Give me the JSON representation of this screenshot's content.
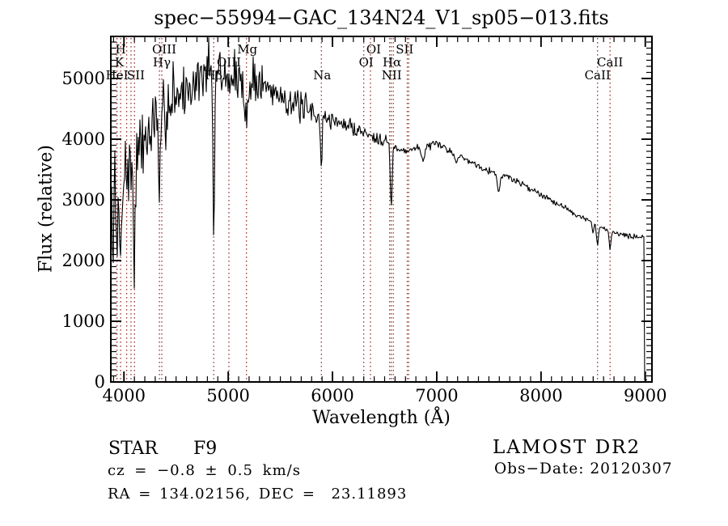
{
  "title": "spec−55994−GAC_134N24_V1_sp05−013.fits",
  "axes": {
    "x_label": "Wavelength (Å)",
    "y_label": "Flux (relative)",
    "x_ticks": [
      4000,
      5000,
      6000,
      7000,
      8000,
      9000
    ],
    "y_ticks": [
      0,
      1000,
      2000,
      3000,
      4000,
      5000
    ],
    "x_minor_step": 100,
    "y_minor_step": 100,
    "xlim": [
      3874,
      9064
    ],
    "ylim": [
      0,
      5693
    ]
  },
  "chart_data": {
    "type": "line",
    "series_name": "LAMOST stellar spectrum",
    "title": "spec−55994−GAC_134N24_V1_sp05−013.fits",
    "xlabel": "Wavelength (Å)",
    "ylabel": "Flux (relative)",
    "xlim": [
      3874,
      9064
    ],
    "ylim": [
      0,
      5693
    ],
    "grid": false,
    "envelope_points": [
      [
        3874,
        1500
      ],
      [
        3880,
        1800
      ],
      [
        3895,
        2800
      ],
      [
        3910,
        3100
      ],
      [
        3940,
        3250
      ],
      [
        3970,
        3350
      ],
      [
        4000,
        3500
      ],
      [
        4060,
        3450
      ],
      [
        4120,
        3600
      ],
      [
        4180,
        3950
      ],
      [
        4240,
        4100
      ],
      [
        4300,
        4300
      ],
      [
        4360,
        4400
      ],
      [
        4420,
        4550
      ],
      [
        4480,
        4680
      ],
      [
        4540,
        4770
      ],
      [
        4600,
        4780
      ],
      [
        4660,
        4900
      ],
      [
        4720,
        5020
      ],
      [
        4780,
        5030
      ],
      [
        4840,
        5060
      ],
      [
        4900,
        5100
      ],
      [
        4960,
        5030
      ],
      [
        5020,
        5000
      ],
      [
        5080,
        4940
      ],
      [
        5140,
        4900
      ],
      [
        5200,
        4880
      ],
      [
        5260,
        4950
      ],
      [
        5320,
        4900
      ],
      [
        5380,
        4840
      ],
      [
        5450,
        4790
      ],
      [
        5550,
        4680
      ],
      [
        5650,
        4550
      ],
      [
        5750,
        4480
      ],
      [
        5850,
        4420
      ],
      [
        5950,
        4350
      ],
      [
        6050,
        4280
      ],
      [
        6150,
        4220
      ],
      [
        6250,
        4150
      ],
      [
        6350,
        4080
      ],
      [
        6450,
        4020
      ],
      [
        6550,
        3960
      ],
      [
        6620,
        3820
      ],
      [
        6700,
        3820
      ],
      [
        6800,
        3850
      ],
      [
        6900,
        3880
      ],
      [
        7000,
        3910
      ],
      [
        7080,
        3860
      ],
      [
        7180,
        3760
      ],
      [
        7280,
        3670
      ],
      [
        7380,
        3580
      ],
      [
        7480,
        3500
      ],
      [
        7580,
        3430
      ],
      [
        7680,
        3380
      ],
      [
        7780,
        3300
      ],
      [
        7880,
        3200
      ],
      [
        7980,
        3110
      ],
      [
        8080,
        3020
      ],
      [
        8180,
        2920
      ],
      [
        8280,
        2820
      ],
      [
        8380,
        2720
      ],
      [
        8480,
        2640
      ],
      [
        8580,
        2540
      ],
      [
        8680,
        2480
      ],
      [
        8780,
        2430
      ],
      [
        8880,
        2395
      ],
      [
        8990,
        2380
      ]
    ],
    "noise_segments": [
      [
        3874,
        1600
      ],
      [
        3890,
        1000
      ],
      [
        3925,
        800
      ],
      [
        3975,
        600
      ],
      [
        4125,
        470
      ],
      [
        4425,
        370
      ],
      [
        4705,
        290
      ],
      [
        5405,
        210
      ],
      [
        5755,
        150
      ],
      [
        5985,
        110
      ],
      [
        6295,
        95
      ],
      [
        6555,
        65
      ],
      [
        6805,
        50
      ],
      [
        7105,
        46
      ],
      [
        7605,
        42
      ],
      [
        8305,
        36
      ],
      [
        8990,
        5
      ]
    ],
    "absorption_lines": [
      {
        "lambda": 3933,
        "depth": 1500,
        "sigma": 8
      },
      {
        "lambda": 3968,
        "depth": 1500,
        "sigma": 8
      },
      {
        "lambda": 4101,
        "depth": 1300,
        "sigma": 9
      },
      {
        "lambda": 4340,
        "depth": 1500,
        "sigma": 9
      },
      {
        "lambda": 4861,
        "depth": 2600,
        "sigma": 8
      },
      {
        "lambda": 5175,
        "depth": 400,
        "sigma": 20
      },
      {
        "lambda": 5893,
        "depth": 900,
        "sigma": 8
      },
      {
        "lambda": 6563,
        "depth": 1050,
        "sigma": 9
      },
      {
        "lambda": 6870,
        "depth": 230,
        "sigma": 14
      },
      {
        "lambda": 7186,
        "depth": 130,
        "sigma": 14
      },
      {
        "lambda": 7594,
        "depth": 300,
        "sigma": 12
      },
      {
        "lambda": 8498,
        "depth": 170,
        "sigma": 8
      },
      {
        "lambda": 8542,
        "depth": 340,
        "sigma": 9
      },
      {
        "lambda": 8662,
        "depth": 280,
        "sigma": 9
      }
    ],
    "forced_peaks": [
      [
        4810,
        5670
      ],
      [
        4920,
        5430
      ],
      [
        5060,
        5480
      ],
      [
        5240,
        5360
      ],
      [
        4475,
        5280
      ]
    ],
    "spectrum_end": 8990,
    "zero_tail_end": 9020,
    "zero_tail_flux": 35,
    "line_markers": [
      {
        "label": "H",
        "lambda": 3968,
        "row": 1,
        "dx": 0
      },
      {
        "label": "K",
        "lambda": 3933,
        "row": 2,
        "dx": 3
      },
      {
        "label": "HeI",
        "lambda": 4026,
        "row": 3,
        "dx": -12
      },
      {
        "label": "SII",
        "lambda": 4068,
        "row": 3,
        "dx": 6
      },
      {
        "label": "OIII",
        "lambda": 4363,
        "row": 1,
        "dx": 3
      },
      {
        "label": "Hγ",
        "lambda": 4340,
        "row": 2,
        "dx": 3
      },
      {
        "label": "Mg",
        "lambda": 5175,
        "row": 1,
        "dx": 1
      },
      {
        "label": "OIII",
        "lambda": 5007,
        "row": 2,
        "dx": 0
      },
      {
        "label": "Hβ",
        "lambda": 4861,
        "row": 3,
        "dx": 0
      },
      {
        "label": "Na",
        "lambda": 5893,
        "row": 3,
        "dx": 1
      },
      {
        "label": "OI",
        "lambda": 6364,
        "row": 1,
        "dx": 4
      },
      {
        "label": "OI",
        "lambda": 6300,
        "row": 2,
        "dx": 3
      },
      {
        "label": "SII",
        "lambda": 6731,
        "row": 1,
        "dx": -5
      },
      {
        "label": "Hα",
        "lambda": 6563,
        "row": 2,
        "dx": 1
      },
      {
        "label": "NII",
        "lambda": 6583,
        "row": 3,
        "dx": -2
      },
      {
        "label": "CaII",
        "lambda": 8662,
        "row": 2,
        "dx": 0
      },
      {
        "label": "CaII",
        "lambda": 8542,
        "row": 3,
        "dx": 0
      }
    ],
    "extra_dotted_lines": [
      4101,
      6548,
      6717
    ]
  },
  "footer": {
    "class_label": "STAR",
    "subclass": "F9",
    "cz_line": "cz = −0.8 ± 0.5 km/s",
    "radec_line": "RA = 134.02156, DEC =  23.11893",
    "survey": "LAMOST DR2",
    "obs_date_line": "Obs−Date: 20120307"
  },
  "colors": {
    "spectrum": "#000000",
    "marker_dotted": "#9c3434",
    "background": "#ffffff"
  }
}
